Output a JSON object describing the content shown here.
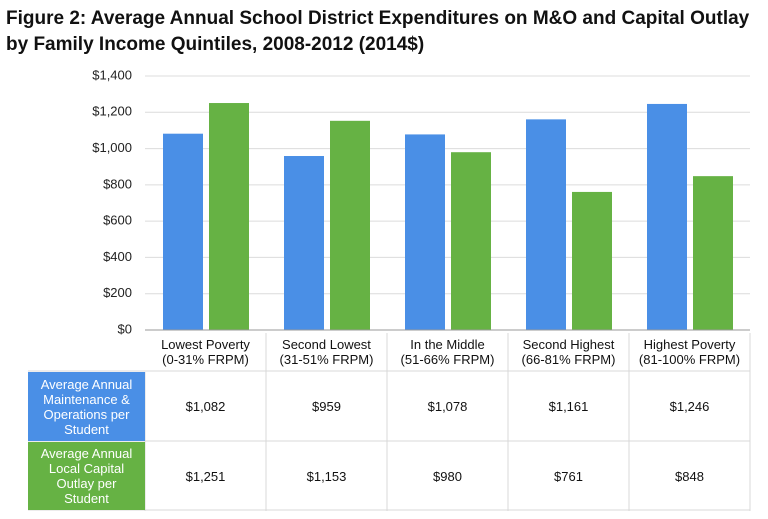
{
  "chart_data": {
    "type": "bar",
    "title": "Figure 2: Average Annual School District Expenditures on M&O and Capital Outlay by Family Income Quintiles, 2008-2012 (2014$)",
    "categories": [
      "Lowest Poverty\n(0-31% FRPM)",
      "Second Lowest\n(31-51% FRPM)",
      "In the Middle\n(51-66% FRPM)",
      "Second Highest\n(66-81% FRPM)",
      "Highest Poverty\n(81-100% FRPM)"
    ],
    "series": [
      {
        "name": "Average Annual Maintenance & Operations per Student",
        "color": "#4a8fe6",
        "values": [
          1082,
          959,
          1078,
          1161,
          1246
        ],
        "value_labels": [
          "$1,082",
          "$959",
          "$1,078",
          "$1,161",
          "$1,246"
        ]
      },
      {
        "name": "Average Annual Local Capital Outlay per Student",
        "color": "#66b244",
        "values": [
          1251,
          1153,
          980,
          761,
          848
        ],
        "value_labels": [
          "$1,251",
          "$1,153",
          "$980",
          "$761",
          "$848"
        ]
      }
    ],
    "ylim": [
      0,
      1400
    ],
    "yticks": [
      {
        "value": 0,
        "label": "$0"
      },
      {
        "value": 200,
        "label": "$200"
      },
      {
        "value": 400,
        "label": "$400"
      },
      {
        "value": 600,
        "label": "$600"
      },
      {
        "value": 800,
        "label": "$800"
      },
      {
        "value": 1000,
        "label": "$1,000"
      },
      {
        "value": 1200,
        "label": "$1,200"
      },
      {
        "value": 1400,
        "label": "$1,400"
      }
    ],
    "grid": true
  }
}
